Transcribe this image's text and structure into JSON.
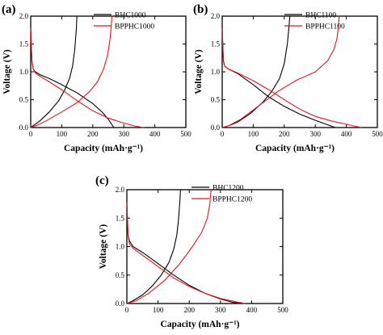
{
  "chart_data": [
    {
      "type": "line",
      "panel": "(a)",
      "xlabel": "Capacity (mAh·g⁻¹)",
      "ylabel": "Voltage (V)",
      "xlim": [
        0,
        500
      ],
      "ylim": [
        0,
        2.0
      ],
      "xticks": [
        "0",
        "100",
        "200",
        "300",
        "400",
        "500"
      ],
      "yticks": [
        "0.0",
        "0.5",
        "1.0",
        "1.5",
        "2.0"
      ],
      "legend_position": "top-right",
      "series": [
        {
          "name": "BHC1000",
          "color": "#000000",
          "discharge": [
            [
              0,
              1.78
            ],
            [
              2,
              1.45
            ],
            [
              4,
              1.2
            ],
            [
              8,
              1.05
            ],
            [
              15,
              1.0
            ],
            [
              30,
              0.95
            ],
            [
              60,
              0.88
            ],
            [
              100,
              0.77
            ],
            [
              150,
              0.62
            ],
            [
              200,
              0.43
            ],
            [
              230,
              0.28
            ],
            [
              250,
              0.15
            ],
            [
              262,
              0.05
            ],
            [
              268,
              0.0
            ]
          ],
          "charge": [
            [
              0,
              0.0
            ],
            [
              10,
              0.04
            ],
            [
              30,
              0.12
            ],
            [
              60,
              0.28
            ],
            [
              90,
              0.48
            ],
            [
              110,
              0.68
            ],
            [
              125,
              0.88
            ],
            [
              135,
              1.1
            ],
            [
              142,
              1.4
            ],
            [
              147,
              1.75
            ],
            [
              149,
              2.0
            ]
          ]
        },
        {
          "name": "BPPHC1000",
          "color": "#e8141a",
          "discharge": [
            [
              0,
              1.78
            ],
            [
              2,
              1.45
            ],
            [
              4,
              1.2
            ],
            [
              8,
              1.05
            ],
            [
              15,
              0.98
            ],
            [
              30,
              0.92
            ],
            [
              60,
              0.82
            ],
            [
              100,
              0.68
            ],
            [
              150,
              0.48
            ],
            [
              200,
              0.3
            ],
            [
              250,
              0.17
            ],
            [
              300,
              0.08
            ],
            [
              340,
              0.02
            ],
            [
              365,
              0.0
            ]
          ],
          "charge": [
            [
              0,
              0.0
            ],
            [
              20,
              0.04
            ],
            [
              50,
              0.12
            ],
            [
              100,
              0.28
            ],
            [
              150,
              0.45
            ],
            [
              190,
              0.65
            ],
            [
              215,
              0.82
            ],
            [
              235,
              1.05
            ],
            [
              248,
              1.3
            ],
            [
              256,
              1.6
            ],
            [
              260,
              1.85
            ],
            [
              262,
              2.0
            ]
          ]
        }
      ]
    },
    {
      "type": "line",
      "panel": "(b)",
      "xlabel": "Capacity (mAh·g⁻¹)",
      "ylabel": "Voltage (V)",
      "xlim": [
        0,
        500
      ],
      "ylim": [
        0,
        2.0
      ],
      "xticks": [
        "0",
        "100",
        "200",
        "300",
        "400",
        "500"
      ],
      "yticks": [
        "0.0",
        "0.5",
        "1.0",
        "1.5",
        "2.0"
      ],
      "legend_position": "top-right",
      "series": [
        {
          "name": "BHC1100",
          "color": "#000000",
          "discharge": [
            [
              0,
              1.78
            ],
            [
              2,
              1.45
            ],
            [
              4,
              1.2
            ],
            [
              8,
              1.1
            ],
            [
              20,
              1.05
            ],
            [
              50,
              0.97
            ],
            [
              100,
              0.77
            ],
            [
              150,
              0.55
            ],
            [
              200,
              0.38
            ],
            [
              250,
              0.24
            ],
            [
              300,
              0.13
            ],
            [
              340,
              0.05
            ],
            [
              365,
              0.0
            ]
          ],
          "charge": [
            [
              0,
              0.0
            ],
            [
              20,
              0.03
            ],
            [
              50,
              0.1
            ],
            [
              90,
              0.25
            ],
            [
              130,
              0.45
            ],
            [
              160,
              0.65
            ],
            [
              185,
              0.88
            ],
            [
              200,
              1.15
            ],
            [
              210,
              1.5
            ],
            [
              215,
              1.8
            ],
            [
              218,
              2.0
            ]
          ]
        },
        {
          "name": "BPPHC1100",
          "color": "#e8141a",
          "discharge": [
            [
              0,
              1.78
            ],
            [
              2,
              1.45
            ],
            [
              4,
              1.2
            ],
            [
              8,
              1.1
            ],
            [
              20,
              1.05
            ],
            [
              50,
              0.98
            ],
            [
              100,
              0.84
            ],
            [
              150,
              0.68
            ],
            [
              200,
              0.5
            ],
            [
              250,
              0.33
            ],
            [
              300,
              0.2
            ],
            [
              350,
              0.12
            ],
            [
              400,
              0.06
            ],
            [
              430,
              0.02
            ],
            [
              450,
              0.0
            ]
          ],
          "charge": [
            [
              0,
              0.0
            ],
            [
              20,
              0.03
            ],
            [
              60,
              0.15
            ],
            [
              120,
              0.4
            ],
            [
              180,
              0.65
            ],
            [
              240,
              0.85
            ],
            [
              300,
              1.0
            ],
            [
              340,
              1.2
            ],
            [
              360,
              1.4
            ],
            [
              370,
              1.6
            ],
            [
              375,
              1.85
            ],
            [
              377,
              2.0
            ]
          ]
        }
      ]
    },
    {
      "type": "line",
      "panel": "(c)",
      "xlabel": "Capacity (mAh·g⁻¹)",
      "ylabel": "Voltage (V)",
      "xlim": [
        0,
        500
      ],
      "ylim": [
        0,
        2.0
      ],
      "xticks": [
        "0",
        "100",
        "200",
        "300",
        "400",
        "500"
      ],
      "yticks": [
        "0.0",
        "0.5",
        "1.0",
        "1.5",
        "2.0"
      ],
      "legend_position": "top-right",
      "series": [
        {
          "name": "BHC1200",
          "color": "#000000",
          "discharge": [
            [
              0,
              1.78
            ],
            [
              2,
              1.45
            ],
            [
              4,
              1.2
            ],
            [
              8,
              1.1
            ],
            [
              20,
              1.0
            ],
            [
              50,
              0.9
            ],
            [
              100,
              0.7
            ],
            [
              150,
              0.5
            ],
            [
              200,
              0.32
            ],
            [
              250,
              0.18
            ],
            [
              300,
              0.08
            ],
            [
              340,
              0.02
            ],
            [
              375,
              0.0
            ]
          ],
          "charge": [
            [
              0,
              0.0
            ],
            [
              20,
              0.05
            ],
            [
              50,
              0.15
            ],
            [
              80,
              0.3
            ],
            [
              110,
              0.5
            ],
            [
              135,
              0.72
            ],
            [
              150,
              0.95
            ],
            [
              160,
              1.2
            ],
            [
              166,
              1.5
            ],
            [
              170,
              1.8
            ],
            [
              172,
              2.0
            ]
          ]
        },
        {
          "name": "BPPHC1200",
          "color": "#e8141a",
          "discharge": [
            [
              0,
              1.78
            ],
            [
              2,
              1.45
            ],
            [
              4,
              1.2
            ],
            [
              8,
              1.05
            ],
            [
              20,
              0.97
            ],
            [
              50,
              0.85
            ],
            [
              100,
              0.65
            ],
            [
              150,
              0.45
            ],
            [
              200,
              0.3
            ],
            [
              250,
              0.18
            ],
            [
              300,
              0.09
            ],
            [
              350,
              0.03
            ],
            [
              380,
              0.0
            ]
          ],
          "charge": [
            [
              0,
              0.0
            ],
            [
              30,
              0.05
            ],
            [
              70,
              0.18
            ],
            [
              120,
              0.4
            ],
            [
              170,
              0.7
            ],
            [
              210,
              1.0
            ],
            [
              240,
              1.25
            ],
            [
              258,
              1.5
            ],
            [
              266,
              1.75
            ],
            [
              270,
              2.0
            ]
          ]
        }
      ]
    }
  ]
}
